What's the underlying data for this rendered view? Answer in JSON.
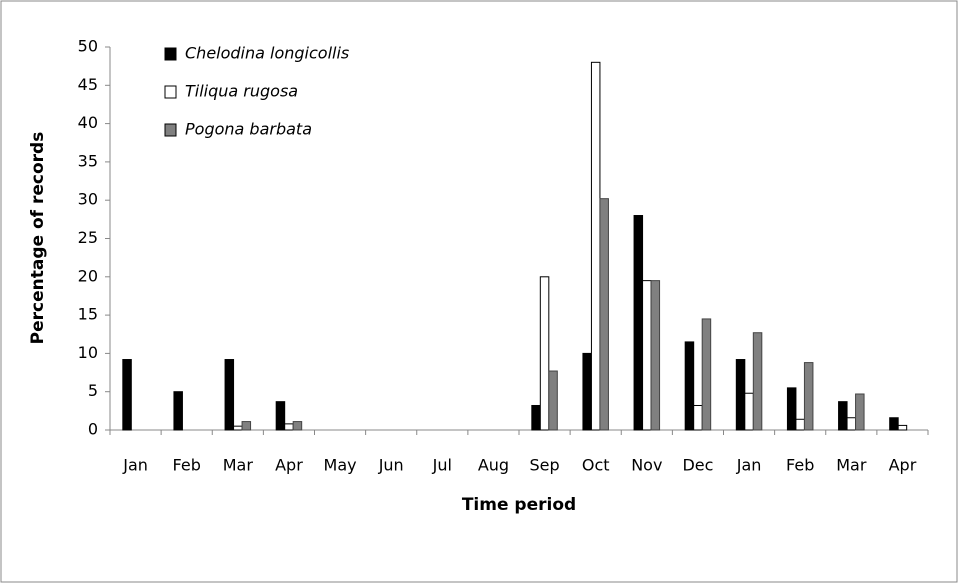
{
  "chart_data": {
    "type": "bar",
    "xlabel": "Time period",
    "ylabel": "Percentage of records",
    "categories": [
      "Jan",
      "Feb",
      "Mar",
      "Apr",
      "May",
      "Jun",
      "Jul",
      "Aug",
      "Sep",
      "Oct",
      "Nov",
      "Dec",
      "Jan",
      "Feb",
      "Mar",
      "Apr"
    ],
    "series": [
      {
        "name": "Chelodina longicollis",
        "color": "#000000",
        "values": [
          9.2,
          5,
          9.2,
          3.7,
          0,
          0,
          0,
          0,
          3.2,
          10,
          28,
          11.5,
          9.2,
          5.5,
          3.7,
          1.6
        ]
      },
      {
        "name": "Tiliqua rugosa",
        "color": "#ffffff",
        "values": [
          0,
          0,
          0.5,
          0.8,
          0,
          0,
          0,
          0,
          20,
          48,
          19.5,
          3.2,
          4.8,
          1.4,
          1.6,
          0.6
        ]
      },
      {
        "name": "Pogona barbata",
        "color": "#808080",
        "values": [
          0,
          0,
          1.1,
          1.1,
          0,
          0,
          0,
          0,
          7.7,
          30.2,
          19.5,
          14.5,
          12.7,
          8.8,
          4.7,
          0
        ]
      }
    ],
    "ylim": [
      0,
      50
    ],
    "yticks": [
      0,
      5,
      10,
      15,
      20,
      25,
      30,
      35,
      40,
      45,
      50
    ],
    "legend": "top-left"
  }
}
